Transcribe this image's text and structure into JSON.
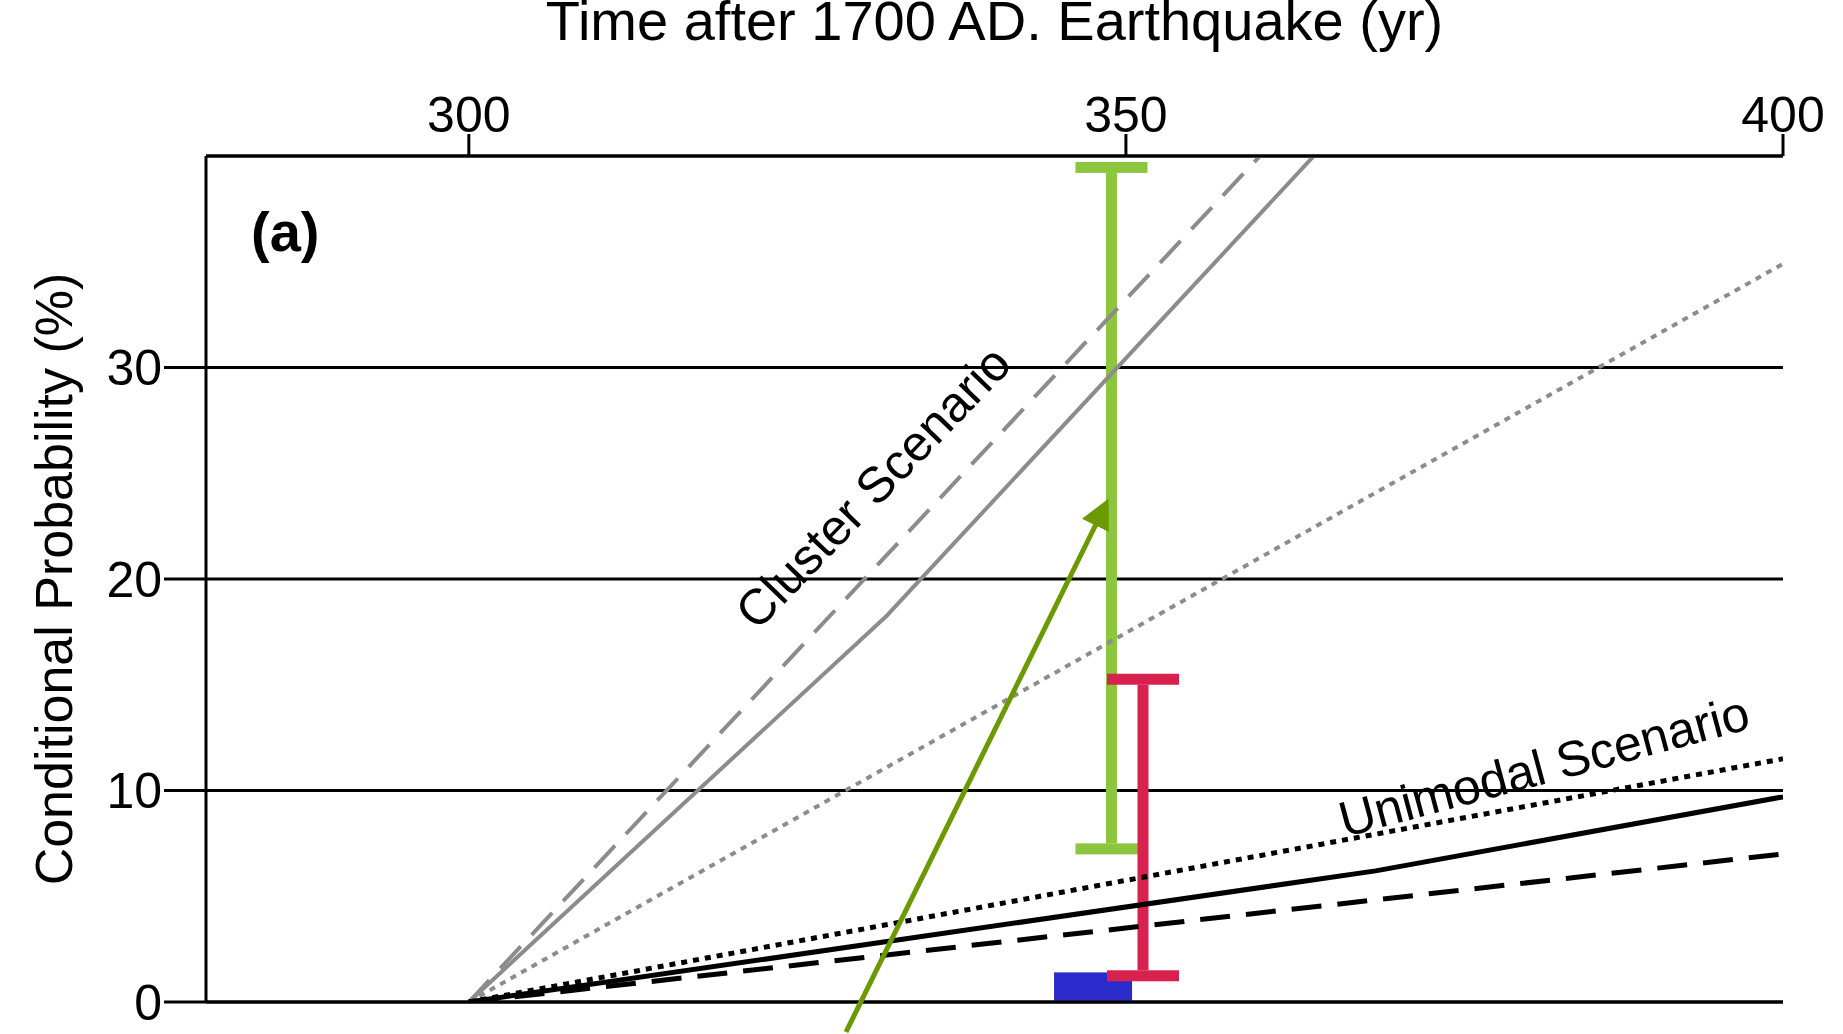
{
  "chart_data": {
    "type": "line",
    "xlabel": "Time after 1700 AD. Earthquake (yr)",
    "ylabel": "Conditional Probability (%)",
    "xlim": [
      280,
      400
    ],
    "xticks": [
      300,
      350,
      400
    ],
    "ylim": [
      0,
      40
    ],
    "yticks": [
      0,
      10,
      20,
      30
    ],
    "grid": "y",
    "marker": "none",
    "annotations": [
      "(a)",
      "Cluster Scenario",
      "Unimodal Scenario"
    ],
    "series": [
      {
        "color": "#8c8c8c",
        "line_style": "dashed",
        "x": [
          300,
          360.2
        ],
        "values": [
          0,
          40
        ]
      },
      {
        "color": "#8c8c8c",
        "line_style": "solid",
        "x": [
          300,
          331.7,
          364.3
        ],
        "values": [
          0,
          18.2,
          40
        ]
      },
      {
        "color": "#8c8c8c",
        "line_style": "dotted",
        "x": [
          300,
          400
        ],
        "values": [
          0,
          34.9
        ]
      },
      {
        "color": "#000000",
        "line_style": "dotted",
        "x": [
          300,
          400
        ],
        "values": [
          0,
          11.5
        ]
      },
      {
        "color": "#000000",
        "line_style": "solid",
        "x": [
          300,
          369,
          400
        ],
        "values": [
          0,
          6.2,
          9.7
        ]
      },
      {
        "color": "#000000",
        "line_style": "dashed",
        "x": [
          300,
          400
        ],
        "values": [
          0,
          7
        ]
      },
      {
        "type": "bar",
        "color": "#2b2bcc",
        "x": [
          347.5
        ],
        "values": [
          1.4
        ]
      },
      {
        "type": "bar",
        "color": "#8cc63f",
        "x": [
          348.9
        ],
        "base": [
          7.5
        ],
        "values": [
          31.7
        ]
      },
      {
        "type": "bar",
        "color": "#d9214f",
        "x": [
          351.3
        ],
        "base": [
          1.5
        ],
        "values": [
          13.5
        ]
      }
    ]
  }
}
